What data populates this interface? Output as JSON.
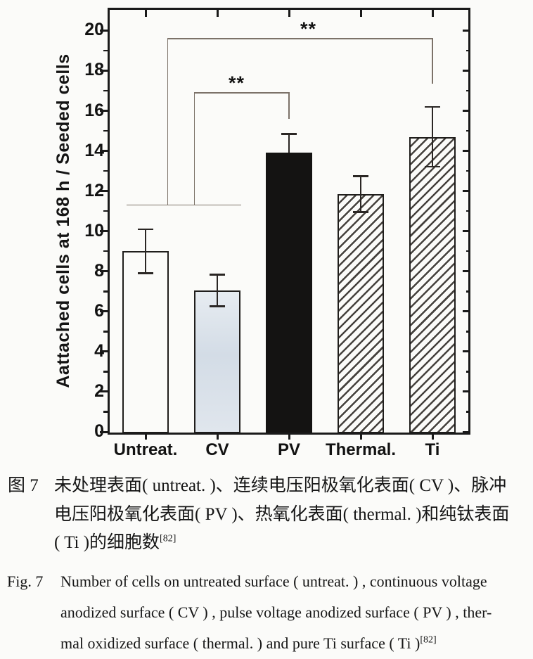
{
  "chart_data": {
    "type": "bar",
    "title": "",
    "xlabel": "",
    "ylabel": "Aattached cells at 168 h / Seeded cells",
    "categories": [
      "Untreat.",
      "CV",
      "PV",
      "Thermal.",
      "Ti"
    ],
    "values": [
      9.0,
      7.05,
      13.9,
      11.85,
      14.7
    ],
    "errors": [
      1.1,
      0.8,
      0.95,
      0.9,
      1.5
    ],
    "error_caps": [
      "both",
      "both",
      "upper",
      "both",
      "both"
    ],
    "bar_styles": [
      "plain",
      "bluegray",
      "solid-black",
      "hatch",
      "hatch"
    ],
    "ylim": [
      0,
      21.1
    ],
    "ytick_labels": [
      "0",
      "2",
      "4",
      "6",
      "8",
      "10",
      "12",
      "14",
      "16",
      "18",
      "20"
    ],
    "ytick_major_step": 2,
    "ytick_minor_step": 1,
    "grid": false,
    "legend": null,
    "significance": {
      "labels": [
        {
          "text": "**",
          "x": 1.27,
          "y": 16.9
        },
        {
          "text": "**",
          "x": 2.27,
          "y": 19.6
        }
      ],
      "lines": [
        [
          [
            -0.26,
            11.3
          ],
          [
            1.33,
            11.3
          ]
        ],
        [
          [
            0.31,
            11.3
          ],
          [
            0.31,
            19.6
          ]
        ],
        [
          [
            0.68,
            11.3
          ],
          [
            0.68,
            16.9
          ]
        ],
        [
          [
            0.68,
            16.9
          ],
          [
            2.0,
            16.9
          ],
          [
            2.0,
            15.6
          ]
        ],
        [
          [
            0.31,
            19.6
          ],
          [
            4.0,
            19.6
          ],
          [
            4.0,
            17.35
          ]
        ]
      ]
    },
    "colors": {
      "axis": "#1a1a1a",
      "bar_outline": "#201e1c",
      "black_bar": "#141312",
      "cv_top": "#e7ecf1",
      "cv_mid": "#d3dce6",
      "cv_bottom": "#e0e6ed",
      "hatch_line": "#45413d",
      "error": "#2a2624",
      "bracket": "#7c7269",
      "text": "#121212",
      "paper": "#fbfbf9"
    }
  },
  "caption_cn": {
    "label": "图 7",
    "lines": [
      "未处理表面( untreat. )、连续电压阳极氧化表面( CV )、脉冲",
      "电压阳极氧化表面( PV )、热氧化表面( thermal. )和纯钛表面",
      "( Ti )的细胞数"
    ],
    "ref": "[82]"
  },
  "caption_en": {
    "label": "Fig. 7",
    "lines": [
      "Number of cells on untreated surface ( untreat. ) , continuous voltage",
      "anodized surface ( CV ) , pulse voltage anodized surface ( PV ) , ther-",
      "mal oxidized surface ( thermal. ) and pure Ti surface ( Ti )"
    ],
    "ref": "[82]"
  }
}
